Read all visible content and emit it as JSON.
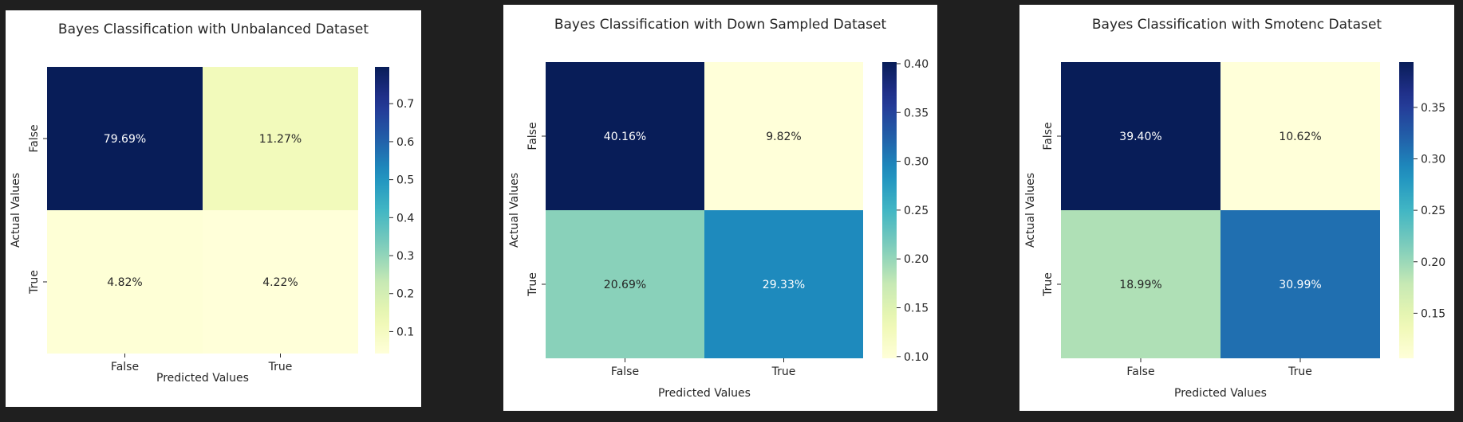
{
  "chart_data": [
    {
      "type": "heatmap",
      "title": "Bayes Classification with Unbalanced Dataset",
      "xlabel": "Predicted Values",
      "ylabel": "Actual Values",
      "x_categories": [
        "False",
        "True"
      ],
      "y_categories": [
        "False",
        "True"
      ],
      "values": [
        [
          0.7969,
          0.1127
        ],
        [
          0.0482,
          0.0422
        ]
      ],
      "cell_labels": [
        [
          "79.69%",
          "11.27%"
        ],
        [
          "4.82%",
          "4.22%"
        ]
      ],
      "colormap": "YlGnBu",
      "colorbar_ticks": [
        "0.1",
        "0.2",
        "0.3",
        "0.4",
        "0.5",
        "0.6",
        "0.7"
      ]
    },
    {
      "type": "heatmap",
      "title": "Bayes Classification with Down Sampled Dataset",
      "xlabel": "Predicted Values",
      "ylabel": "Actual Values",
      "x_categories": [
        "False",
        "True"
      ],
      "y_categories": [
        "False",
        "True"
      ],
      "values": [
        [
          0.4016,
          0.0982
        ],
        [
          0.2069,
          0.2933
        ]
      ],
      "cell_labels": [
        [
          "40.16%",
          "9.82%"
        ],
        [
          "20.69%",
          "29.33%"
        ]
      ],
      "colormap": "YlGnBu",
      "colorbar_ticks": [
        "0.10",
        "0.15",
        "0.20",
        "0.25",
        "0.30",
        "0.35",
        "0.40"
      ]
    },
    {
      "type": "heatmap",
      "title": "Bayes Classification with Smotenc Dataset",
      "xlabel": "Predicted Values",
      "ylabel": "Actual Values",
      "x_categories": [
        "False",
        "True"
      ],
      "y_categories": [
        "False",
        "True"
      ],
      "values": [
        [
          0.394,
          0.1062
        ],
        [
          0.1899,
          0.3099
        ]
      ],
      "cell_labels": [
        [
          "39.40%",
          "10.62%"
        ],
        [
          "18.99%",
          "30.99%"
        ]
      ],
      "colormap": "YlGnBu",
      "colorbar_ticks": [
        "0.15",
        "0.20",
        "0.25",
        "0.30",
        "0.35"
      ]
    }
  ]
}
